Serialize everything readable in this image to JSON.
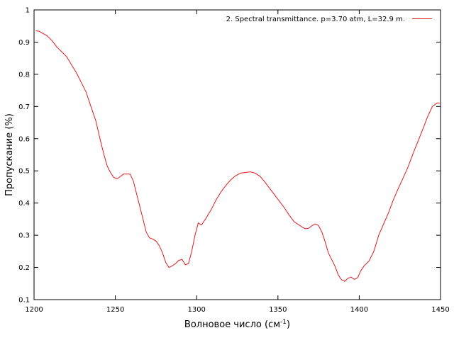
{
  "chart_data": {
    "type": "line",
    "xlabel": "Волновое число (см",
    "xlabel_sup": "-1",
    "xlabel_end": ")",
    "ylabel": "Пропускание (%)",
    "xlim": [
      1200,
      1450
    ],
    "ylim": [
      0.1,
      1.0
    ],
    "x_ticks": [
      "1200",
      "1250",
      "1300",
      "1350",
      "1400",
      "1450"
    ],
    "y_ticks": [
      "0.1",
      "0.2",
      "0.3",
      "0.4",
      "0.5",
      "0.6",
      "0.7",
      "0.8",
      "0.9",
      "1"
    ],
    "grid": false,
    "legend_position": "top-right",
    "series": [
      {
        "name": "2. Spectral transmittance. p=3.70 atm, L=32.9 m.",
        "color": "#e41a1c",
        "x": [
          1201,
          1203,
          1205,
          1208,
          1211,
          1214,
          1217,
          1220,
          1223,
          1226,
          1229,
          1232,
          1235,
          1238,
          1241,
          1243,
          1245,
          1247,
          1249,
          1251,
          1253,
          1255,
          1257,
          1259,
          1261,
          1263,
          1265,
          1267,
          1269,
          1271,
          1273,
          1275,
          1277,
          1279,
          1281,
          1283,
          1285,
          1287,
          1289,
          1291,
          1293,
          1295,
          1297,
          1299,
          1301,
          1303,
          1306,
          1309,
          1312,
          1315,
          1318,
          1321,
          1324,
          1327,
          1330,
          1333,
          1336,
          1339,
          1342,
          1345,
          1348,
          1351,
          1354,
          1357,
          1360,
          1363,
          1365,
          1367,
          1369,
          1371,
          1373,
          1375,
          1377,
          1379,
          1381,
          1383,
          1385,
          1386,
          1387,
          1389,
          1391,
          1393,
          1395,
          1397,
          1399,
          1401,
          1403,
          1406,
          1409,
          1412,
          1415,
          1418,
          1421,
          1424,
          1427,
          1430,
          1433,
          1436,
          1439,
          1442,
          1445,
          1448,
          1450
        ],
        "y": [
          0.935,
          0.934,
          0.928,
          0.92,
          0.905,
          0.885,
          0.87,
          0.855,
          0.83,
          0.805,
          0.775,
          0.745,
          0.7,
          0.655,
          0.59,
          0.55,
          0.515,
          0.495,
          0.48,
          0.475,
          0.482,
          0.49,
          0.49,
          0.49,
          0.47,
          0.43,
          0.39,
          0.35,
          0.31,
          0.292,
          0.288,
          0.282,
          0.268,
          0.245,
          0.215,
          0.2,
          0.205,
          0.212,
          0.222,
          0.225,
          0.208,
          0.212,
          0.25,
          0.3,
          0.338,
          0.332,
          0.355,
          0.38,
          0.41,
          0.435,
          0.455,
          0.472,
          0.485,
          0.493,
          0.495,
          0.497,
          0.493,
          0.483,
          0.465,
          0.445,
          0.425,
          0.405,
          0.385,
          0.362,
          0.342,
          0.332,
          0.325,
          0.32,
          0.322,
          0.33,
          0.335,
          0.33,
          0.31,
          0.28,
          0.245,
          0.225,
          0.205,
          0.192,
          0.178,
          0.162,
          0.157,
          0.166,
          0.17,
          0.163,
          0.168,
          0.19,
          0.205,
          0.22,
          0.25,
          0.3,
          0.335,
          0.37,
          0.41,
          0.445,
          0.478,
          0.512,
          0.552,
          0.59,
          0.628,
          0.668,
          0.7,
          0.711,
          0.71
        ]
      }
    ]
  }
}
